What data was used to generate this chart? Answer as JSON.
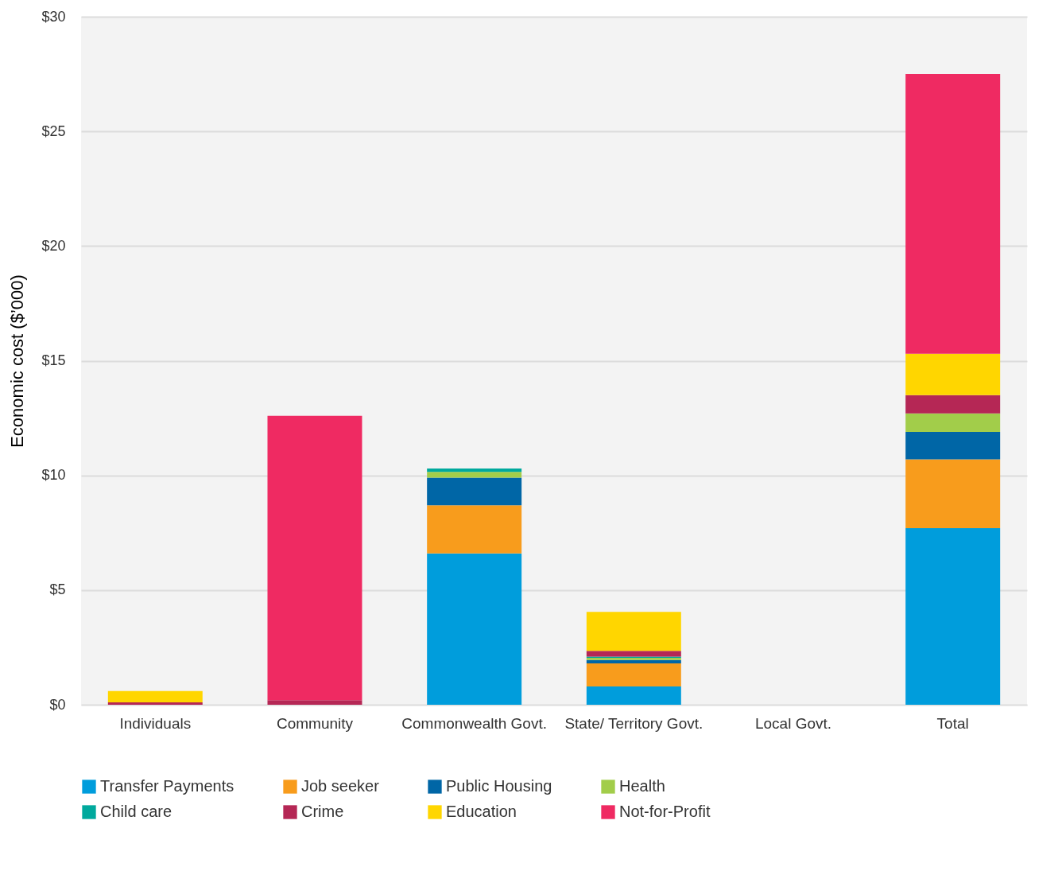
{
  "chart_data": {
    "type": "bar",
    "stacked": true,
    "ylabel": "Economic cost ($’000)",
    "categories": [
      "Individuals",
      "Community",
      "Commonwealth Govt.",
      "State/ Territory Govt.",
      "Local Govt.",
      "Total"
    ],
    "series": [
      {
        "name": "Transfer Payments",
        "color": "#009ddc",
        "values": [
          0,
          0,
          6.6,
          0.8,
          0,
          7.7
        ]
      },
      {
        "name": "Job seeker",
        "color": "#f89c1c",
        "values": [
          0,
          0,
          2.1,
          1.0,
          0,
          3.0
        ]
      },
      {
        "name": "Public Housing",
        "color": "#0066a6",
        "values": [
          0,
          0,
          1.2,
          0.15,
          0,
          1.2
        ]
      },
      {
        "name": "Health",
        "color": "#a2cd4a",
        "values": [
          0,
          0,
          0.25,
          0.1,
          0,
          0.8
        ]
      },
      {
        "name": "Child care",
        "color": "#00a99d",
        "values": [
          0,
          0,
          0.15,
          0.05,
          0,
          0
        ]
      },
      {
        "name": "Crime",
        "color": "#b52755",
        "values": [
          0.1,
          0.2,
          0,
          0.25,
          0,
          0.8
        ]
      },
      {
        "name": "Education",
        "color": "#ffd600",
        "values": [
          0.5,
          0,
          0,
          1.7,
          0,
          1.8
        ]
      },
      {
        "name": "Not-for-Profit",
        "color": "#ef2a62",
        "values": [
          0,
          12.4,
          0,
          0,
          0,
          12.2
        ]
      }
    ],
    "ylim": [
      0,
      30
    ],
    "yticks": [
      {
        "value": 0,
        "label": "$0"
      },
      {
        "value": 5,
        "label": "$5"
      },
      {
        "value": 10,
        "label": "$10"
      },
      {
        "value": 15,
        "label": "$15"
      },
      {
        "value": 20,
        "label": "$20"
      },
      {
        "value": 25,
        "label": "$25"
      },
      {
        "value": 30,
        "label": "$30"
      }
    ],
    "grid": "y",
    "legend": "bottom"
  }
}
